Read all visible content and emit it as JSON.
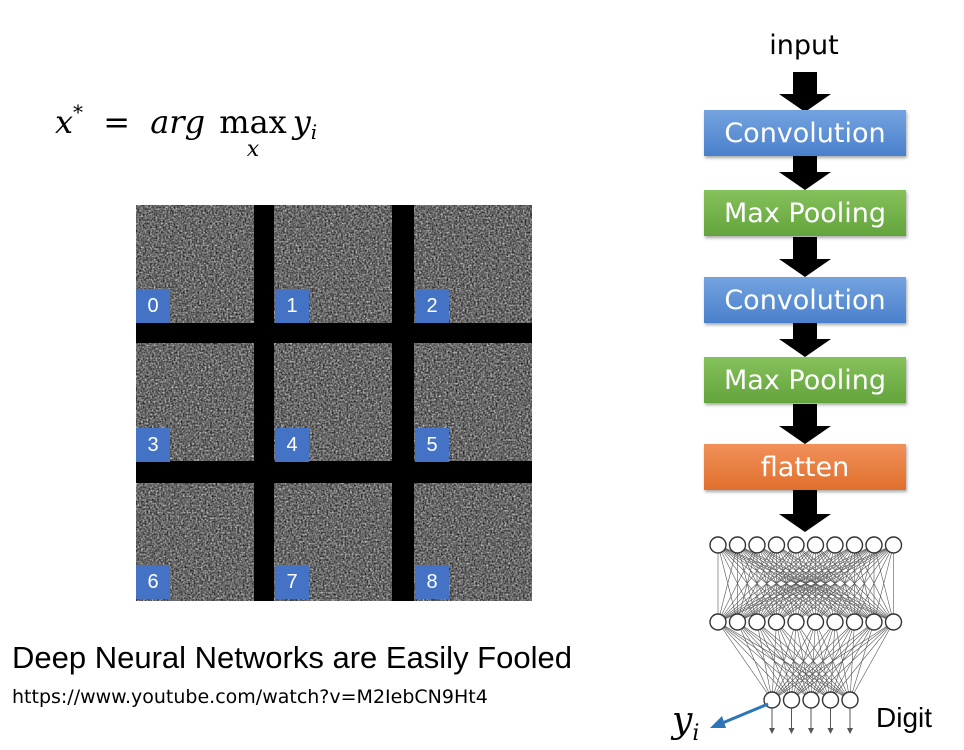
{
  "formula": {
    "lhs": "x",
    "lhs_sup": "*",
    "equals": "=",
    "func": "arg",
    "max": "max",
    "max_under": "x",
    "target": "y",
    "target_sub": "i"
  },
  "grid": {
    "cells": [
      {
        "label": "0"
      },
      {
        "label": "1"
      },
      {
        "label": "2"
      },
      {
        "label": "3"
      },
      {
        "label": "4"
      },
      {
        "label": "5"
      },
      {
        "label": "6"
      },
      {
        "label": "7"
      },
      {
        "label": "8"
      }
    ],
    "label_color": "#4472c4"
  },
  "caption": {
    "title": "Deep Neural Networks are Easily Fooled",
    "url": "https://www.youtube.com/watch?v=M2IebCN9Ht4"
  },
  "flow": {
    "input_label": "input",
    "blocks": [
      {
        "label": "Convolution",
        "kind": "conv",
        "color": "#5b8fd6"
      },
      {
        "label": "Max Pooling",
        "kind": "pool",
        "color": "#70ad47"
      },
      {
        "label": "Convolution",
        "kind": "conv",
        "color": "#5b8fd6"
      },
      {
        "label": "Max Pooling",
        "kind": "pool",
        "color": "#70ad47"
      },
      {
        "label": "flatten",
        "kind": "flat",
        "color": "#ed7d31"
      }
    ],
    "output_symbol": "y",
    "output_symbol_sub": "i",
    "output_label": "Digit"
  }
}
